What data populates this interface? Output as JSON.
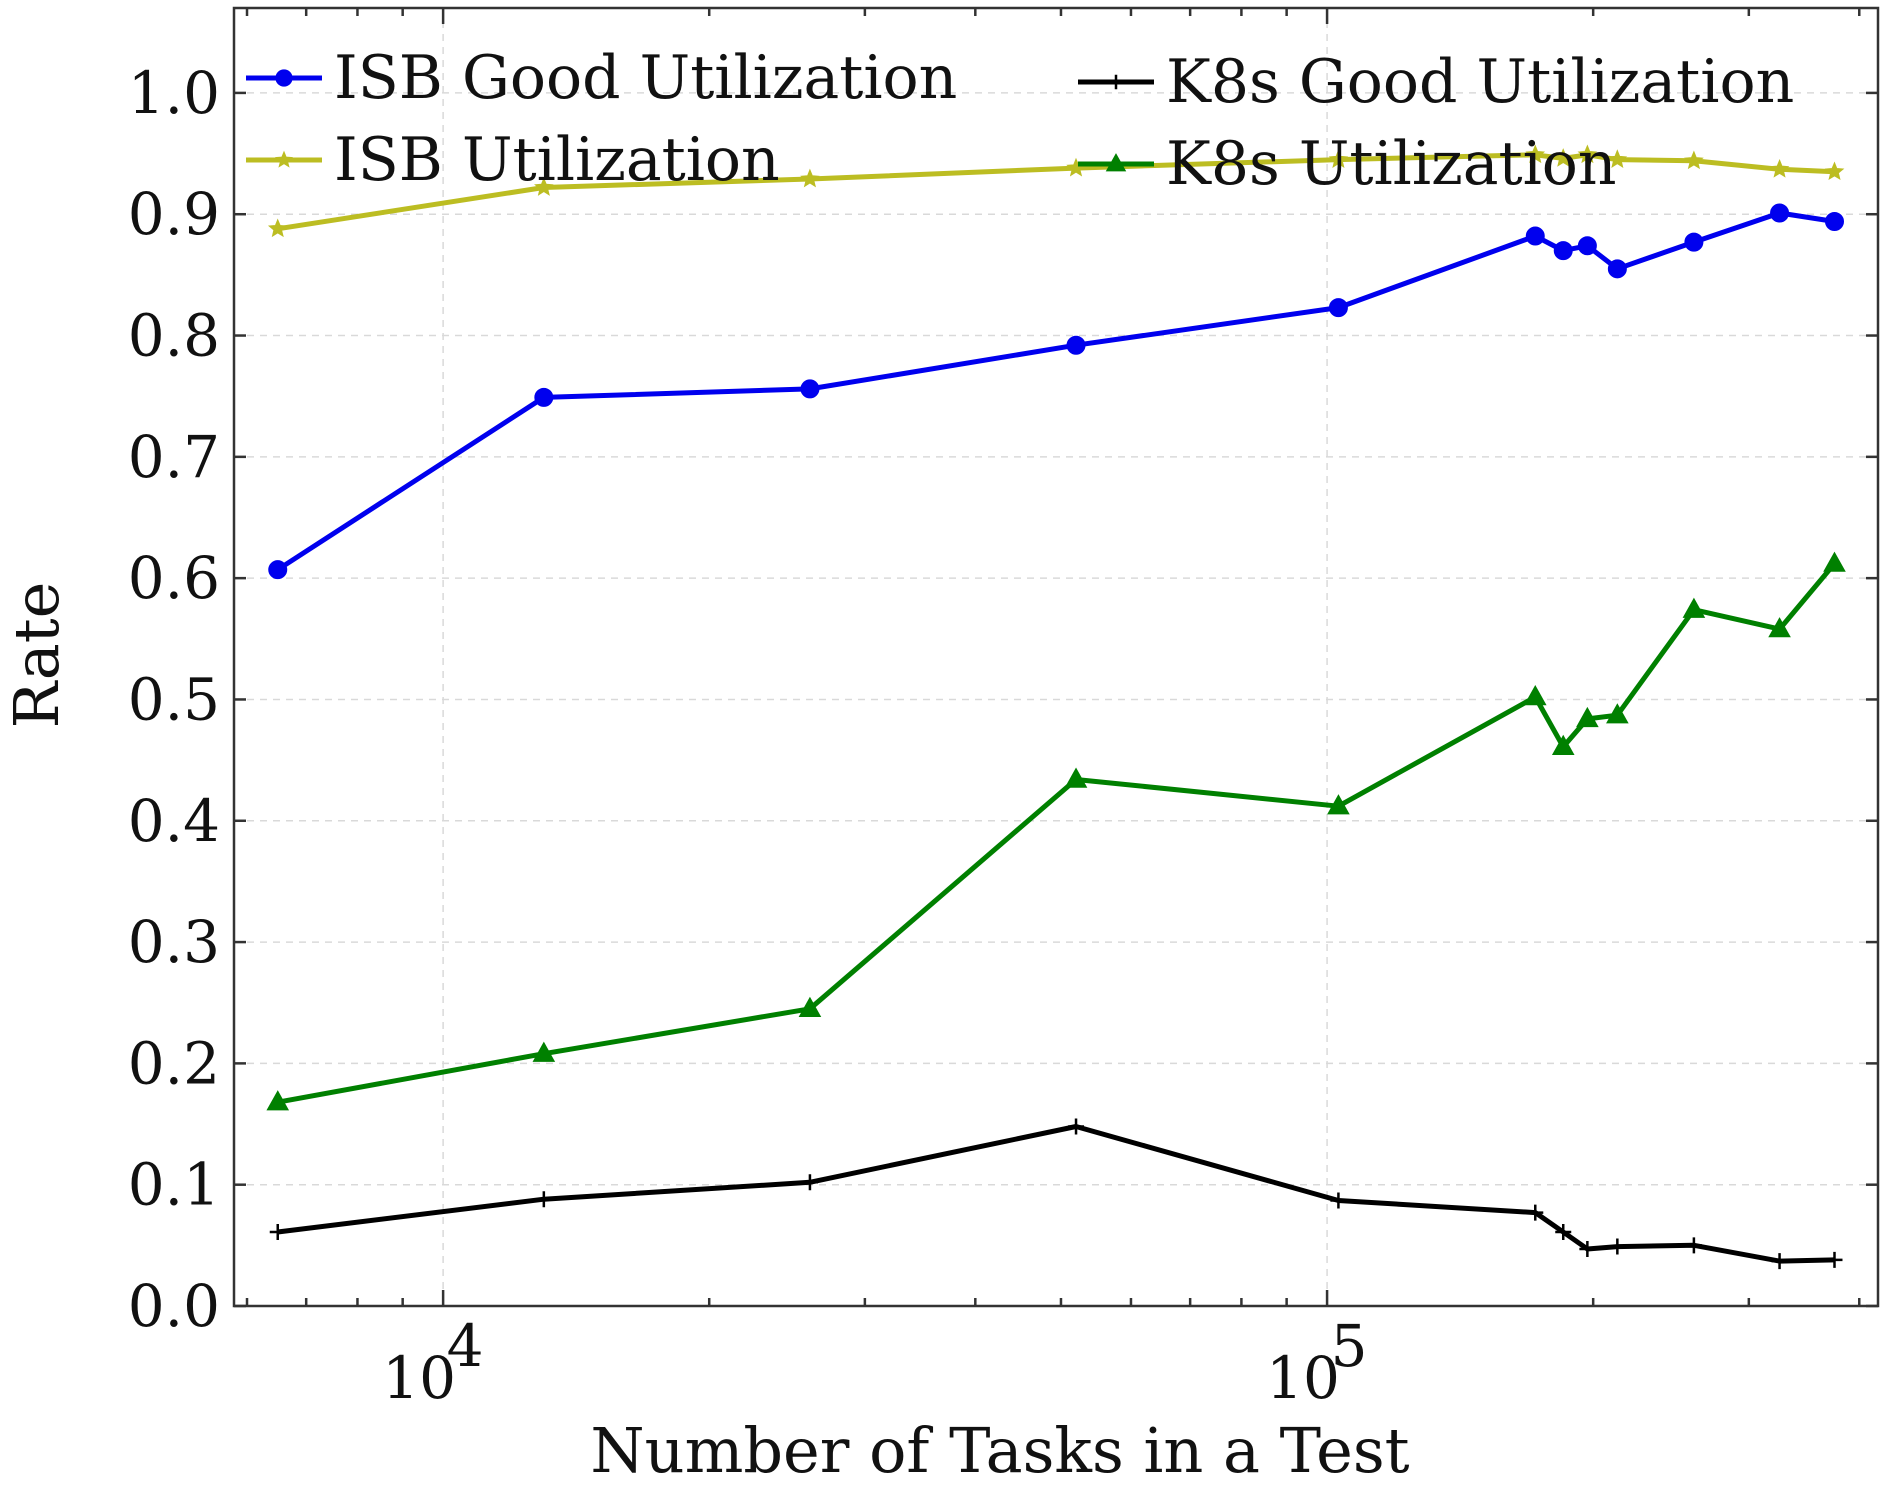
{
  "chart_data": {
    "type": "line",
    "xlabel": "Number of Tasks in a Test",
    "ylabel": "Rate",
    "x_scale": "log",
    "xlim": [
      5800,
      420000
    ],
    "ylim": [
      0,
      1.07
    ],
    "y_ticks": [
      0.0,
      0.1,
      0.2,
      0.3,
      0.4,
      0.5,
      0.6,
      0.7,
      0.8,
      0.9,
      1.0
    ],
    "x_ticks": [
      {
        "value": 10000,
        "base": "10",
        "exp": "4"
      },
      {
        "value": 100000,
        "base": "10",
        "exp": "5"
      }
    ],
    "grid": true,
    "legend_position": "top",
    "x": [
      6500,
      13000,
      26000,
      52000,
      103000,
      172000,
      185000,
      197000,
      213000,
      260000,
      325000,
      375000
    ],
    "series": [
      {
        "name": "ISB Good Utilization",
        "color": "#0000ee",
        "marker": "circle",
        "values": [
          0.607,
          0.749,
          0.756,
          0.792,
          0.823,
          0.882,
          0.87,
          0.874,
          0.855,
          0.877,
          0.901,
          0.894
        ]
      },
      {
        "name": "ISB Utilization",
        "color": "#bcbd22",
        "marker": "star",
        "values": [
          0.888,
          0.922,
          0.929,
          0.938,
          0.945,
          0.949,
          0.946,
          0.949,
          0.945,
          0.944,
          0.937,
          0.935
        ]
      },
      {
        "name": "K8s Good Utilization",
        "color": "#000000",
        "marker": "plus",
        "values": [
          0.061,
          0.088,
          0.102,
          0.148,
          0.087,
          0.077,
          0.061,
          0.047,
          0.049,
          0.05,
          0.037,
          0.038
        ]
      },
      {
        "name": "K8s Utilization",
        "color": "#008000",
        "marker": "triangle",
        "values": [
          0.168,
          0.208,
          0.245,
          0.434,
          0.412,
          0.502,
          0.461,
          0.484,
          0.487,
          0.574,
          0.558,
          0.612
        ]
      }
    ]
  }
}
